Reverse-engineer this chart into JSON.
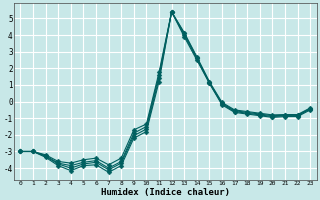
{
  "xlabel": "Humidex (Indice chaleur)",
  "background_color": "#c8e8e8",
  "grid_color": "#ffffff",
  "line_color": "#006060",
  "xlim": [
    -0.5,
    23.5
  ],
  "ylim": [
    -4.7,
    5.9
  ],
  "xticks": [
    0,
    1,
    2,
    3,
    4,
    5,
    6,
    7,
    8,
    9,
    10,
    11,
    12,
    13,
    14,
    15,
    16,
    17,
    18,
    19,
    20,
    21,
    22,
    23
  ],
  "yticks": [
    -4,
    -3,
    -2,
    -1,
    0,
    1,
    2,
    3,
    4,
    5
  ],
  "line1_x": [
    0,
    1,
    2,
    3,
    4,
    5,
    6,
    7,
    8,
    9,
    10,
    11,
    12,
    13,
    14,
    15,
    16,
    17,
    18,
    19,
    20,
    21,
    22,
    23
  ],
  "line1_y": [
    -3.0,
    -3.0,
    -3.35,
    -3.85,
    -4.15,
    -3.85,
    -3.8,
    -4.25,
    -3.85,
    -2.2,
    -1.8,
    1.2,
    5.4,
    3.9,
    2.5,
    1.1,
    -0.2,
    -0.65,
    -0.75,
    -0.85,
    -0.95,
    -0.9,
    -0.9,
    -0.5
  ],
  "line2_x": [
    0,
    1,
    2,
    3,
    4,
    5,
    6,
    7,
    8,
    9,
    10,
    11,
    12,
    13,
    14,
    15,
    16,
    17,
    18,
    19,
    20,
    21,
    22,
    23
  ],
  "line2_y": [
    -3.0,
    -3.0,
    -3.3,
    -3.75,
    -4.0,
    -3.75,
    -3.65,
    -4.1,
    -3.7,
    -2.05,
    -1.65,
    1.4,
    5.4,
    4.0,
    2.6,
    1.1,
    -0.15,
    -0.6,
    -0.7,
    -0.8,
    -0.9,
    -0.85,
    -0.85,
    -0.45
  ],
  "line3_x": [
    0,
    1,
    2,
    3,
    4,
    5,
    6,
    7,
    8,
    9,
    10,
    11,
    12,
    13,
    14,
    15,
    16,
    17,
    18,
    19,
    20,
    21,
    22,
    23
  ],
  "line3_y": [
    -3.0,
    -3.0,
    -3.25,
    -3.7,
    -3.85,
    -3.65,
    -3.55,
    -4.0,
    -3.6,
    -1.9,
    -1.5,
    1.6,
    5.4,
    4.1,
    2.65,
    1.15,
    -0.1,
    -0.55,
    -0.65,
    -0.75,
    -0.85,
    -0.82,
    -0.82,
    -0.42
  ],
  "line4_x": [
    0,
    1,
    2,
    3,
    4,
    5,
    6,
    7,
    8,
    9,
    10,
    11,
    12,
    13,
    14,
    15,
    16,
    17,
    18,
    19,
    20,
    21,
    22,
    23
  ],
  "line4_y": [
    -3.0,
    -3.0,
    -3.2,
    -3.6,
    -3.7,
    -3.5,
    -3.4,
    -3.8,
    -3.4,
    -1.7,
    -1.35,
    1.75,
    5.4,
    4.15,
    2.7,
    1.2,
    -0.05,
    -0.5,
    -0.6,
    -0.7,
    -0.8,
    -0.78,
    -0.78,
    -0.38
  ]
}
